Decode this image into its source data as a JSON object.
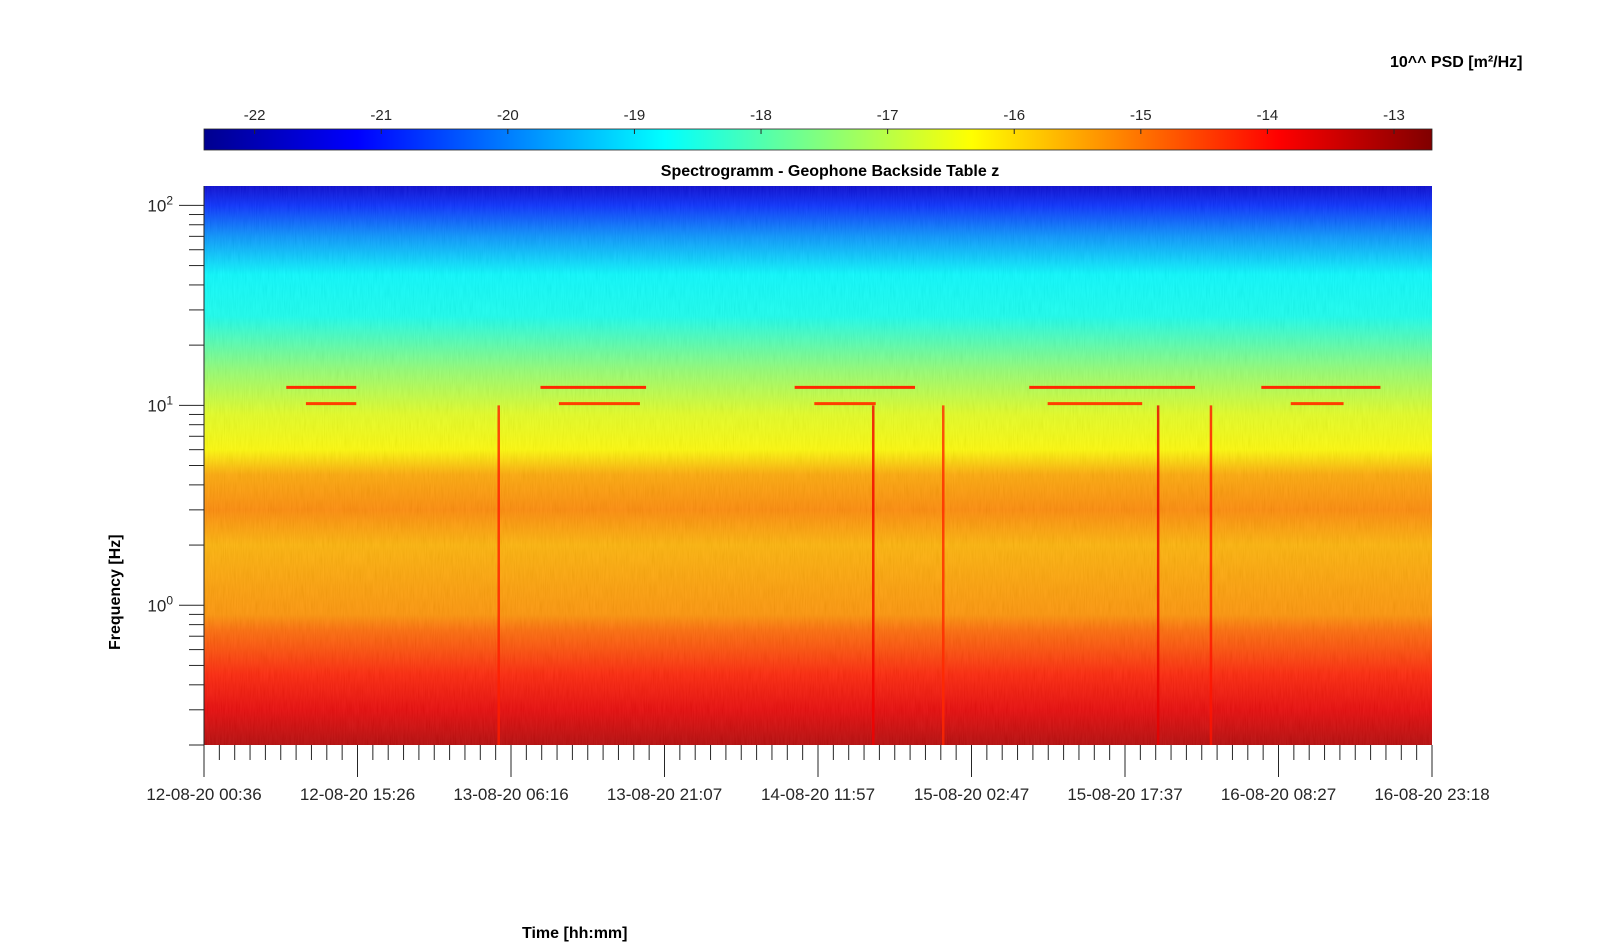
{
  "chart_data": {
    "type": "heatmap",
    "title": "Spectrogramm - Geophone Backside Table z",
    "xlabel": "Time [hh:mm]",
    "ylabel": "Frequency [Hz]",
    "yscale": "log",
    "ylim": [
      0.2,
      125
    ],
    "ytick_labels": [
      {
        "base": "10",
        "exp": "0",
        "value": 1
      },
      {
        "base": "10",
        "exp": "1",
        "value": 10
      },
      {
        "base": "10",
        "exp": "2",
        "value": 100
      }
    ],
    "xtick_labels": [
      "12-08-20 00:36",
      "12-08-20 15:26",
      "13-08-20 06:16",
      "13-08-20 21:07",
      "14-08-20 11:57",
      "15-08-20 02:47",
      "15-08-20 17:37",
      "16-08-20 08:27",
      "16-08-20 23:18"
    ],
    "x_minor_ticks_per_interval": 10,
    "colorbar": {
      "label": "10^^ PSD [m²/Hz]",
      "colormap": "jet",
      "range": [
        -22.4,
        -12.7
      ],
      "ticks": [
        -22,
        -21,
        -20,
        -19,
        -18,
        -17,
        -16,
        -15,
        -14,
        -13
      ],
      "tick_labels": [
        "-22",
        "-21",
        "-20",
        "-19",
        "-18",
        "-17",
        "-16",
        "-15",
        "-14",
        "-13"
      ]
    },
    "psd_profile_log10": {
      "frequency_hz": [
        0.2,
        0.3,
        0.45,
        0.6,
        0.75,
        0.9,
        1.2,
        2.0,
        3.0,
        4.5,
        6.0,
        9.0,
        15.0,
        28.0,
        45.0,
        70.0,
        100.0,
        125.0
      ],
      "value": [
        -13.2,
        -13.7,
        -14.2,
        -14.6,
        -14.9,
        -15.3,
        -15.4,
        -15.6,
        -15.2,
        -15.5,
        -16.3,
        -16.6,
        -17.4,
        -18.6,
        -18.8,
        -19.8,
        -20.8,
        -21.7
      ]
    },
    "narrowband_lines": [
      {
        "freq_hz": 12.3,
        "value": -14.3,
        "segments": [
          [
            0.067,
            0.124
          ],
          [
            0.274,
            0.36
          ],
          [
            0.481,
            0.579
          ],
          [
            0.672,
            0.807
          ],
          [
            0.861,
            0.958
          ]
        ]
      },
      {
        "freq_hz": 10.2,
        "value": -14.5,
        "segments": [
          [
            0.083,
            0.124
          ],
          [
            0.289,
            0.355
          ],
          [
            0.497,
            0.547
          ],
          [
            0.687,
            0.764
          ],
          [
            0.885,
            0.928
          ]
        ]
      }
    ],
    "broadband_events": [
      {
        "x_frac": 0.24,
        "value": -14.2
      },
      {
        "x_frac": 0.545,
        "value": -13.8
      },
      {
        "x_frac": 0.602,
        "value": -14.3
      },
      {
        "x_frac": 0.777,
        "value": -13.7
      },
      {
        "x_frac": 0.82,
        "value": -14.1
      }
    ],
    "colors": {
      "jet_stops": [
        "#00008f",
        "#0000ff",
        "#0080ff",
        "#00ffff",
        "#80ff80",
        "#ffff00",
        "#ff8000",
        "#ff0000",
        "#800000"
      ]
    }
  }
}
